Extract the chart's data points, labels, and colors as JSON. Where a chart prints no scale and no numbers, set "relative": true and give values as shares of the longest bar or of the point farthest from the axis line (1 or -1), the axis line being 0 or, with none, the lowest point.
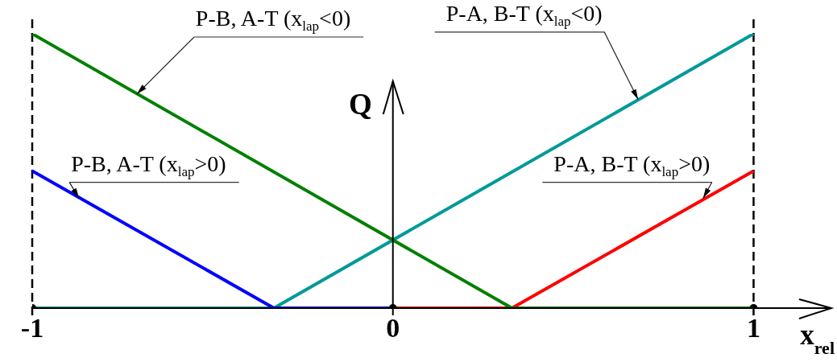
{
  "chart_data": {
    "type": "line",
    "relative": true,
    "xlabel": "x$_{rel}$",
    "ylabel": "Q",
    "xlim": [
      -1,
      1.2
    ],
    "xticks": [
      -1,
      0,
      1
    ],
    "series": [
      {
        "color": "#009999",
        "x": [
          -1,
          -0.33,
          1
        ],
        "values": [
          0,
          0,
          1
        ]
      },
      {
        "color": "#0000ff",
        "x": [
          -1,
          -0.33,
          0
        ],
        "values": [
          0.5,
          0,
          0
        ]
      },
      {
        "color": "#ff0000",
        "x": [
          0,
          0.33,
          1
        ],
        "values": [
          0,
          0,
          0.5
        ]
      },
      {
        "color": "#008000",
        "x": [
          -1,
          0.33,
          1
        ],
        "values": [
          1,
          0,
          0
        ]
      },
      {
        "type": "scatter",
        "color": "#000000",
        "marker": "circle",
        "x": [
          -1,
          0,
          1
        ],
        "values": [
          0,
          0,
          0
        ]
      }
    ],
    "ref_lines": [
      {
        "axis": "x",
        "value": -1,
        "color": "#000000",
        "line_style": "dashed"
      },
      {
        "axis": "x",
        "value": 1,
        "color": "#000000",
        "line_style": "dashed"
      }
    ],
    "annotations": [
      {
        "text": "P-B, A-T (x$_{lap}$<0)",
        "x": -0.71,
        "y": 0.78
      },
      {
        "text": "P-B, A-T (x$_{lap}$>0)",
        "x": -0.87,
        "y": 0.4
      },
      {
        "text": "P-A, B-T (x$_{lap}$<0)",
        "x": 0.68,
        "y": 0.76
      },
      {
        "text": "P-A, B-T (x$_{lap}$>0)",
        "x": 0.86,
        "y": 0.4
      }
    ]
  }
}
